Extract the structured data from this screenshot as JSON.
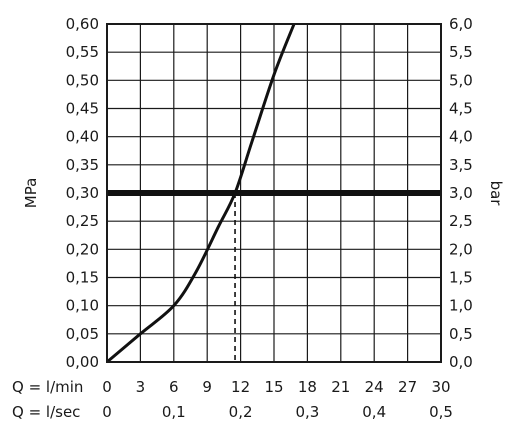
{
  "chart_data": {
    "type": "line",
    "title": "",
    "ylabel_left": "MPa",
    "ylabel_right": "bar",
    "x_primary": {
      "label": "Q = l/min",
      "range": [
        0,
        30
      ],
      "ticks": [
        "0",
        "3",
        "6",
        "9",
        "12",
        "15",
        "18",
        "21",
        "24",
        "27",
        "30"
      ]
    },
    "x_secondary": {
      "label": "Q = l/sec",
      "range": [
        0,
        0.5
      ],
      "ticks": [
        "0",
        "0,1",
        "0,2",
        "0,3",
        "0,4",
        "0,5"
      ]
    },
    "y_left": {
      "range": [
        0,
        0.6
      ],
      "ticks": [
        "0,00",
        "0,05",
        "0,10",
        "0,15",
        "0,20",
        "0,25",
        "0,30",
        "0,35",
        "0,40",
        "0,45",
        "0,50",
        "0,55",
        "0,60"
      ]
    },
    "y_right": {
      "range": [
        0,
        6
      ],
      "ticks": [
        "0,0",
        "0,5",
        "1,0",
        "1,5",
        "2,0",
        "2,5",
        "3,0",
        "3,5",
        "4,0",
        "4,5",
        "5,0",
        "5,5",
        "6,0"
      ]
    },
    "grid": true,
    "series": [
      {
        "x": [
          0,
          3,
          6,
          8,
          10,
          11.5,
          13,
          15,
          16.8
        ],
        "y": [
          0,
          0.05,
          0.1,
          0.16,
          0.24,
          0.3,
          0.39,
          0.51,
          0.6
        ]
      }
    ],
    "reference_line": {
      "y": 0.3
    },
    "reference_drop": {
      "x": 11.5,
      "y": 0.3
    }
  }
}
